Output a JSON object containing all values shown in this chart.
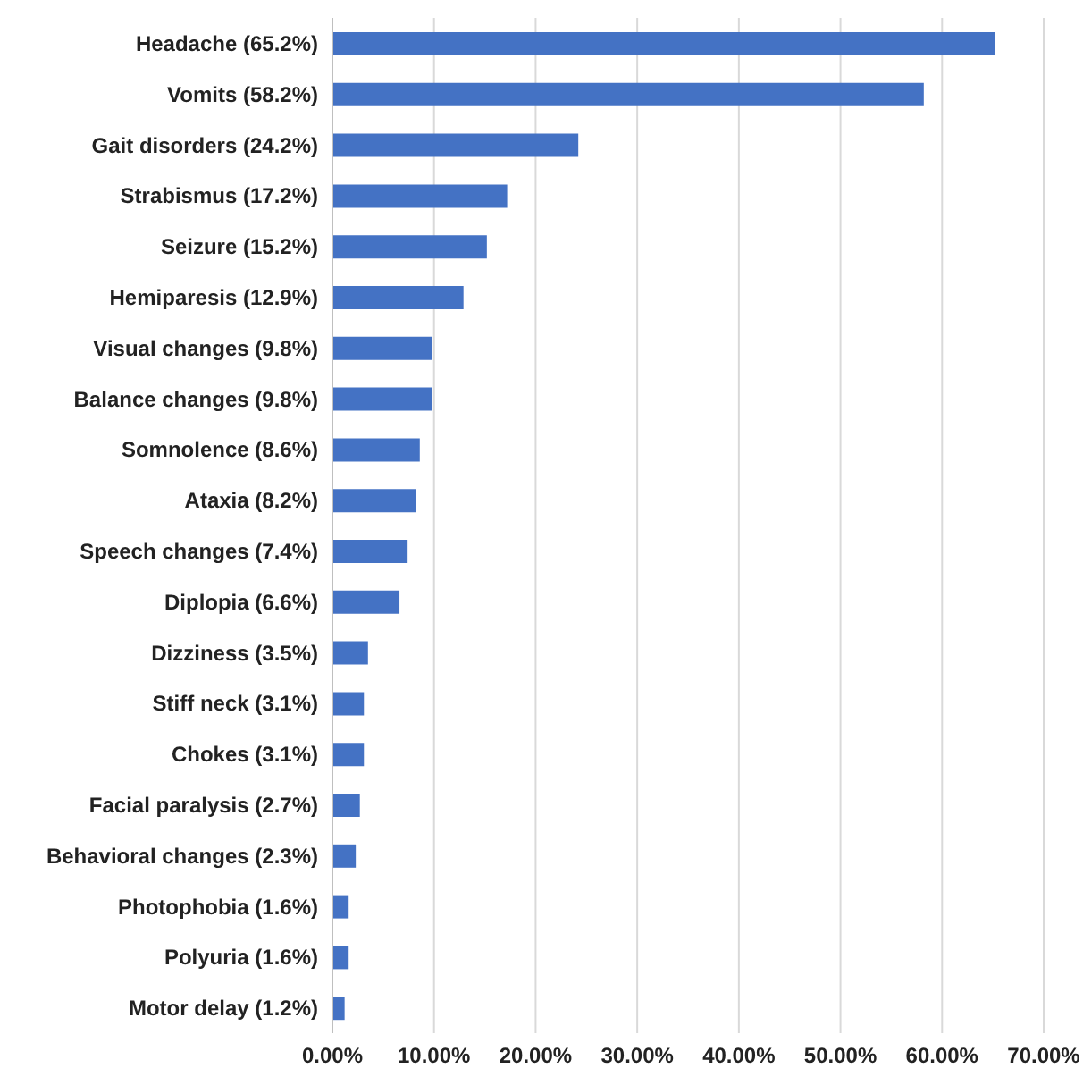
{
  "chart_data": {
    "type": "bar",
    "orientation": "horizontal",
    "categories": [
      "Headache (65.2%)",
      "Vomits (58.2%)",
      "Gait disorders (24.2%)",
      "Strabismus (17.2%)",
      "Seizure (15.2%)",
      "Hemiparesis (12.9%)",
      "Visual changes (9.8%)",
      "Balance changes (9.8%)",
      "Somnolence (8.6%)",
      "Ataxia (8.2%)",
      "Speech changes (7.4%)",
      "Diplopia (6.6%)",
      "Dizziness (3.5%)",
      "Stiff neck (3.1%)",
      "Chokes (3.1%)",
      "Facial paralysis (2.7%)",
      "Behavioral changes (2.3%)",
      "Photophobia (1.6%)",
      "Polyuria (1.6%)",
      "Motor delay (1.2%)"
    ],
    "values": [
      65.2,
      58.2,
      24.2,
      17.2,
      15.2,
      12.9,
      9.8,
      9.8,
      8.6,
      8.2,
      7.4,
      6.6,
      3.5,
      3.1,
      3.1,
      2.7,
      2.3,
      1.6,
      1.6,
      1.2
    ],
    "color": "#4472c4",
    "xlim": [
      0,
      70
    ],
    "xticks": [
      {
        "value": 0,
        "label": "0.00%"
      },
      {
        "value": 10,
        "label": "10.00%"
      },
      {
        "value": 20,
        "label": "20.00%"
      },
      {
        "value": 30,
        "label": "30.00%"
      },
      {
        "value": 40,
        "label": "40.00%"
      },
      {
        "value": 50,
        "label": "50.00%"
      },
      {
        "value": 60,
        "label": "60.00%"
      },
      {
        "value": 70,
        "label": "70.00%"
      }
    ],
    "grid": "x",
    "legend": false
  }
}
